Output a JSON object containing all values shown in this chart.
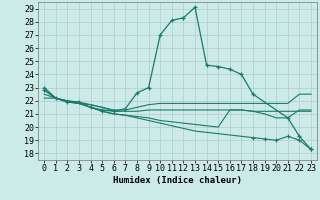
{
  "xlabel": "Humidex (Indice chaleur)",
  "bg_color": "#cceae7",
  "grid_color": "#b0ccca",
  "line_color": "#1a7a6e",
  "xlim": [
    -0.5,
    23.5
  ],
  "ylim": [
    17.5,
    29.5
  ],
  "yticks": [
    18,
    19,
    20,
    21,
    22,
    23,
    24,
    25,
    26,
    27,
    28,
    29
  ],
  "xticks": [
    0,
    1,
    2,
    3,
    4,
    5,
    6,
    7,
    8,
    9,
    10,
    11,
    12,
    13,
    14,
    15,
    16,
    17,
    18,
    19,
    20,
    21,
    22,
    23
  ],
  "line1_x": [
    0,
    1,
    2,
    3,
    4,
    5,
    6,
    7,
    8,
    9,
    10,
    11,
    12,
    13,
    14,
    15,
    16,
    17,
    18,
    21,
    22,
    23
  ],
  "line1_y": [
    23.0,
    22.2,
    21.9,
    21.9,
    21.5,
    21.3,
    21.2,
    21.4,
    22.6,
    23.0,
    27.0,
    28.1,
    28.3,
    29.1,
    24.7,
    24.6,
    24.4,
    24.0,
    22.5,
    20.7,
    19.3,
    18.3
  ],
  "line2_x": [
    0,
    1,
    2,
    3,
    4,
    5,
    6,
    7,
    8,
    9,
    10,
    11,
    12,
    13,
    14,
    15,
    16,
    17,
    18,
    19,
    20,
    21,
    22,
    23
  ],
  "line2_y": [
    22.2,
    22.2,
    21.9,
    21.8,
    21.7,
    21.5,
    21.2,
    21.2,
    21.2,
    21.3,
    21.3,
    21.3,
    21.3,
    21.3,
    21.3,
    21.3,
    21.3,
    21.3,
    21.2,
    21.2,
    21.2,
    21.2,
    21.2,
    21.2
  ],
  "line3_x": [
    0,
    1,
    2,
    3,
    4,
    5,
    6,
    7,
    8,
    9,
    10,
    11,
    12,
    13,
    14,
    15,
    16,
    17,
    18,
    19,
    20,
    21,
    22,
    23
  ],
  "line3_y": [
    22.5,
    22.2,
    22.0,
    21.9,
    21.7,
    21.5,
    21.3,
    21.3,
    21.5,
    21.7,
    21.8,
    21.8,
    21.8,
    21.8,
    21.8,
    21.8,
    21.8,
    21.8,
    21.8,
    21.8,
    21.8,
    21.8,
    22.5,
    22.5
  ],
  "line4_x": [
    0,
    1,
    2,
    3,
    4,
    5,
    6,
    7,
    8,
    9,
    10,
    11,
    12,
    13,
    14,
    15,
    16,
    17,
    18,
    19,
    20,
    21,
    22,
    23
  ],
  "line4_y": [
    22.8,
    22.2,
    21.9,
    21.8,
    21.5,
    21.2,
    21.0,
    20.9,
    20.8,
    20.7,
    20.5,
    20.4,
    20.3,
    20.2,
    20.1,
    20.0,
    21.3,
    21.3,
    21.2,
    21.0,
    20.7,
    20.7,
    21.3,
    21.3
  ],
  "line5_x": [
    0,
    1,
    2,
    3,
    4,
    5,
    6,
    7,
    8,
    9,
    10,
    11,
    12,
    13,
    14,
    15,
    16,
    17,
    18,
    19,
    20,
    21,
    22,
    23
  ],
  "line5_y": [
    22.8,
    22.2,
    22.0,
    21.8,
    21.5,
    21.2,
    21.0,
    20.9,
    20.7,
    20.5,
    20.3,
    20.1,
    19.9,
    19.7,
    19.6,
    19.5,
    19.4,
    19.3,
    19.2,
    19.1,
    19.0,
    19.3,
    19.0,
    18.3
  ],
  "font_size": 6.5
}
